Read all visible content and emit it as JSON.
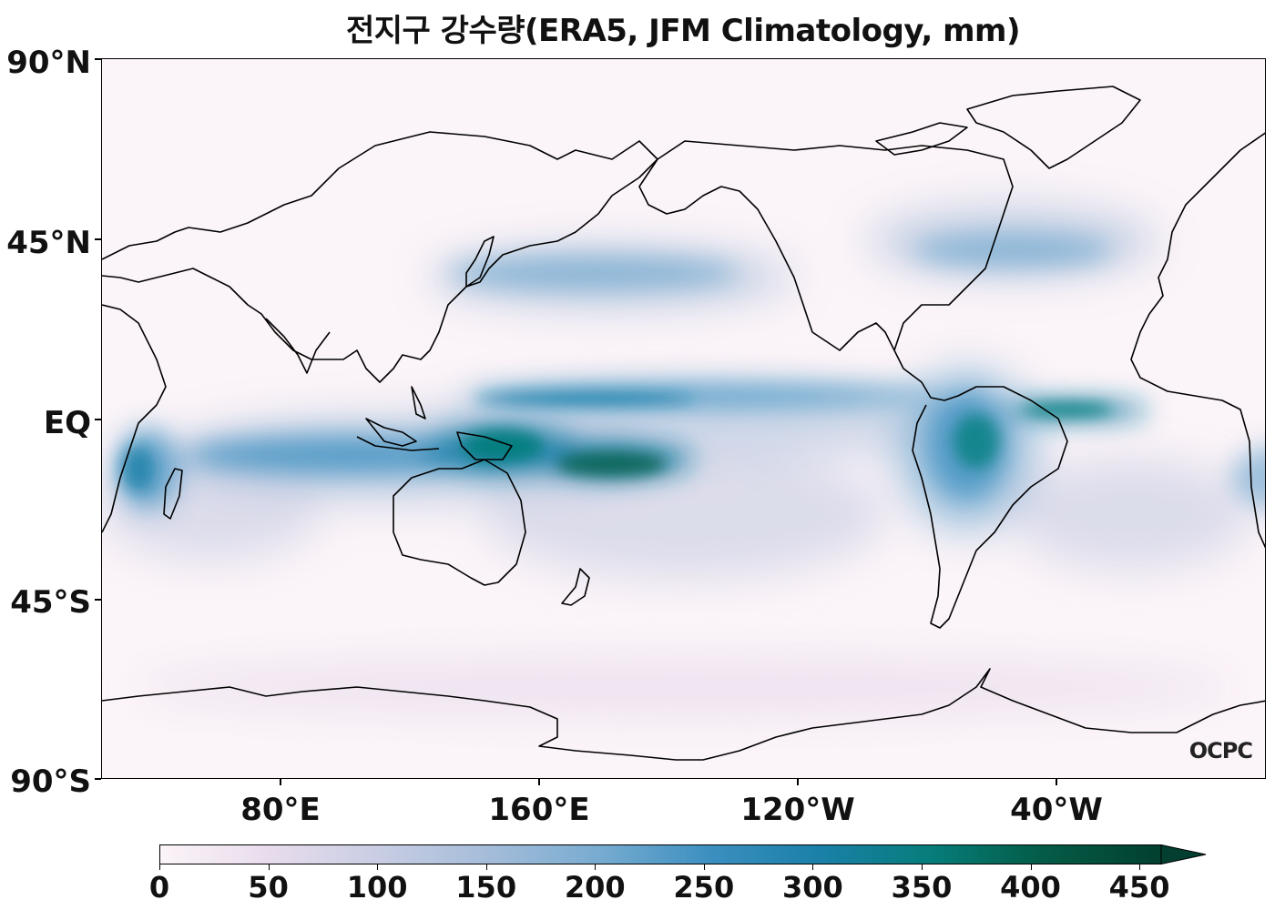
{
  "title": "전지구 강수량(ERA5, JFM Climatology, mm)",
  "map": {
    "projection": "PlateCarree (central longitude ~160°E)",
    "colormap": "PuBuGn",
    "background_color": "#fbf4f8",
    "y_ticks": [
      "90°N",
      "45°N",
      "EQ",
      "45°S",
      "90°S"
    ],
    "x_ticks": [
      "80°E",
      "160°E",
      "120°W",
      "40°W"
    ],
    "logo_text": "OCPC"
  },
  "colorbar": {
    "ticks": [
      "0",
      "50",
      "100",
      "150",
      "200",
      "250",
      "300",
      "350",
      "400",
      "450"
    ],
    "min": 0,
    "max": 460,
    "extend": "max",
    "colors": [
      "#fcf4f8",
      "#e8dcec",
      "#c8cde3",
      "#a4bcd9",
      "#77abd0",
      "#3b8fc0",
      "#1a80a8",
      "#067d7a",
      "#045c47",
      "#023f30"
    ]
  }
}
